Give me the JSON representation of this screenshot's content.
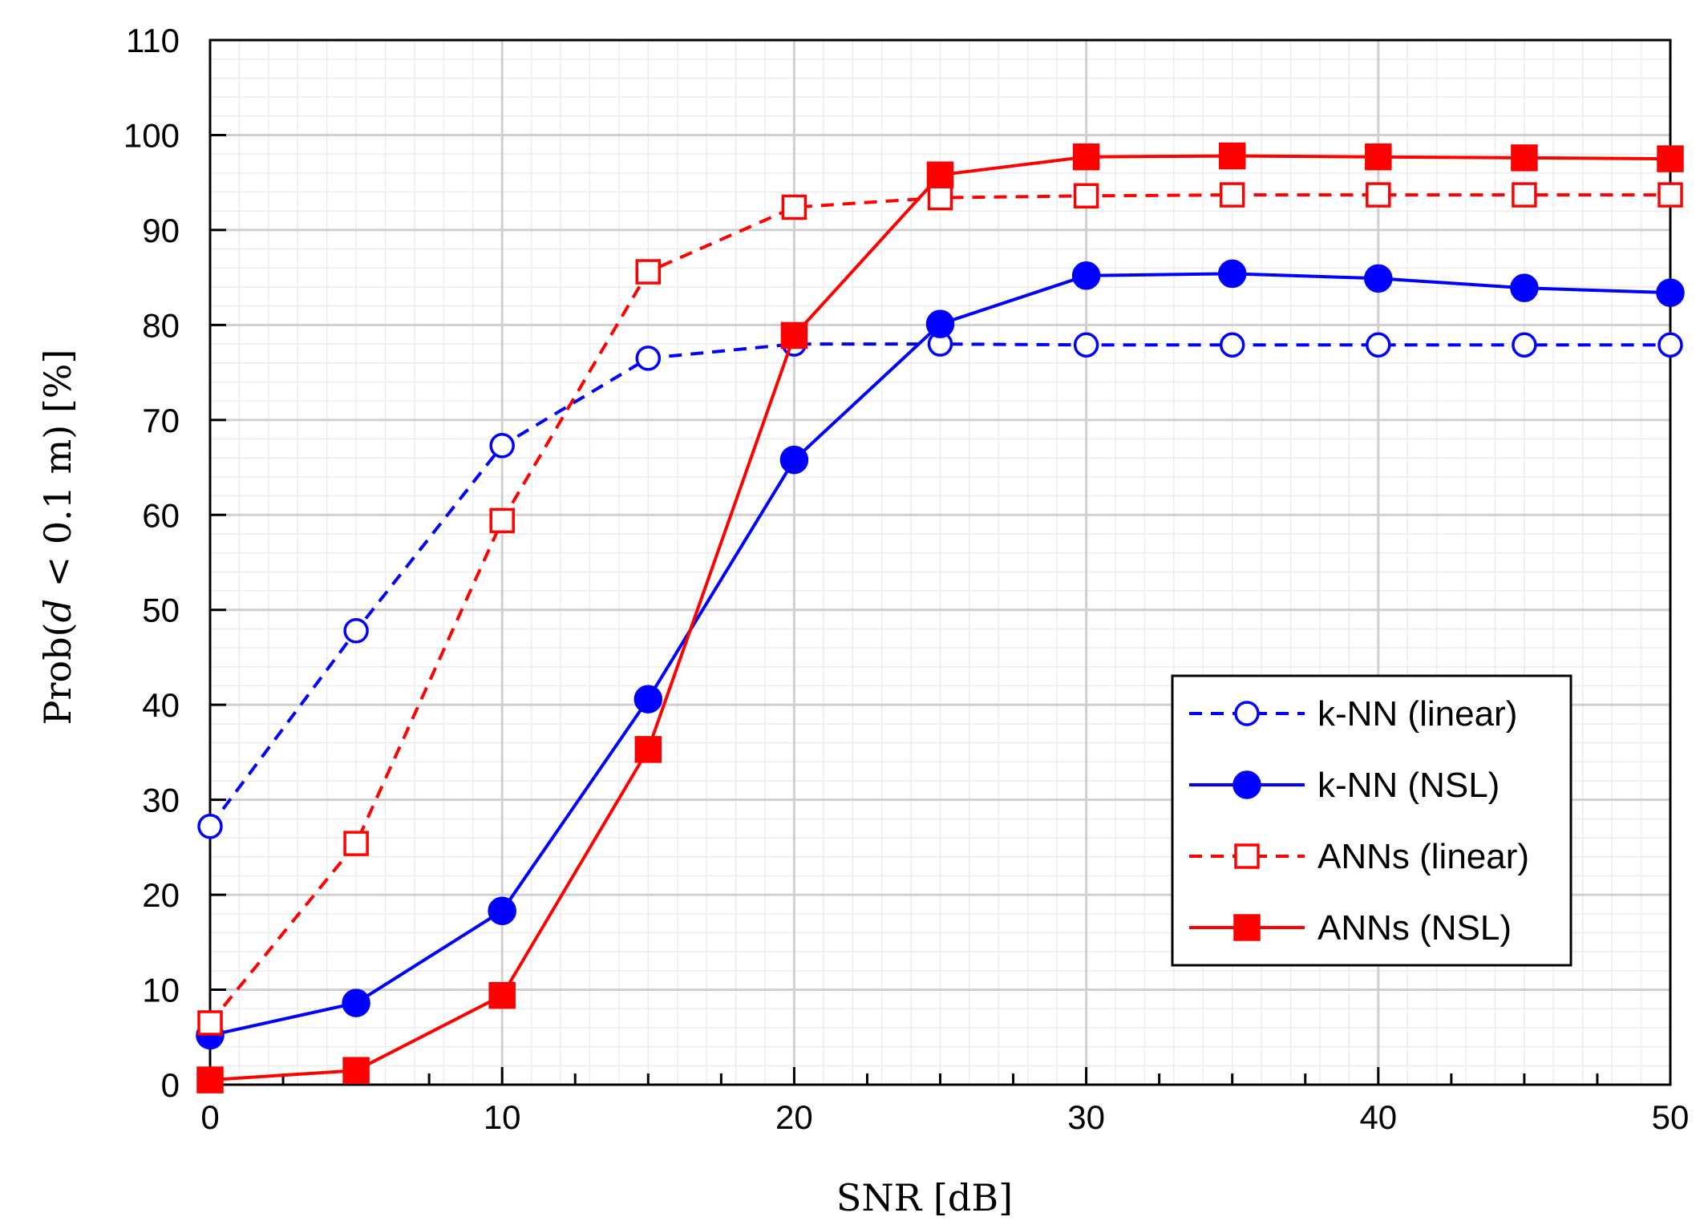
{
  "chart_data": {
    "type": "line",
    "title": "",
    "xlabel": "SNR [dB]",
    "ylabel_prefix": "Prob(",
    "ylabel_var": "d",
    "ylabel_suffix": " < 0.1 m) [%]",
    "xlim": [
      0,
      50
    ],
    "ylim": [
      0,
      110
    ],
    "x_ticks": [
      0,
      10,
      20,
      30,
      40,
      50
    ],
    "y_ticks": [
      0,
      10,
      20,
      30,
      40,
      50,
      60,
      70,
      80,
      90,
      100,
      110
    ],
    "grid": true,
    "legend_position": "lower-right",
    "x": [
      0,
      5,
      10,
      15,
      20,
      25,
      30,
      35,
      40,
      45,
      50
    ],
    "series": [
      {
        "name": "k-NN (linear)",
        "color": "#0000ff",
        "dash": "dashed",
        "marker": "circle-open",
        "values": [
          27.2,
          47.8,
          67.3,
          76.5,
          78.0,
          78.0,
          77.9,
          77.9,
          77.9,
          77.9,
          77.9
        ]
      },
      {
        "name": "k-NN (NSL)",
        "color": "#0000ff",
        "dash": "solid",
        "marker": "circle-filled",
        "values": [
          5.2,
          8.6,
          18.3,
          40.6,
          65.8,
          80.1,
          85.2,
          85.4,
          84.9,
          83.9,
          83.4
        ]
      },
      {
        "name": "ANNs (linear)",
        "color": "#ff0000",
        "dash": "dashed",
        "marker": "square-open",
        "values": [
          6.5,
          25.4,
          59.4,
          85.6,
          92.4,
          93.4,
          93.6,
          93.7,
          93.7,
          93.7,
          93.7
        ]
      },
      {
        "name": "ANNs (NSL)",
        "color": "#ff0000",
        "dash": "solid",
        "marker": "square-filled",
        "values": [
          0.5,
          1.5,
          9.4,
          35.3,
          78.9,
          95.8,
          97.7,
          97.8,
          97.7,
          97.6,
          97.5
        ]
      }
    ]
  }
}
